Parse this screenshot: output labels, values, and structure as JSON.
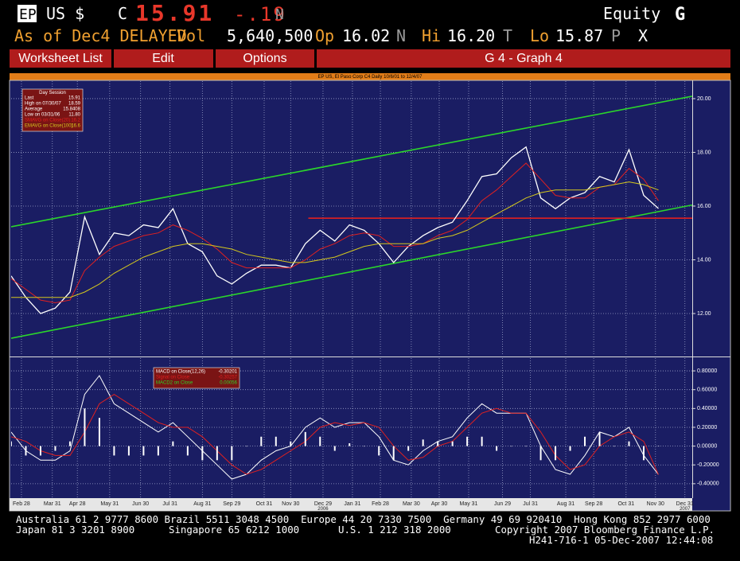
{
  "header": {
    "ticker": "EP",
    "market": "US $",
    "close_label": "C",
    "last": "15.91",
    "change": "-.19",
    "close_flag": "N",
    "sector": "Equity",
    "function": "G"
  },
  "quote_bar": {
    "as_of": "As of Dec4 DELAYED",
    "vol_label": "Vol",
    "volume": "5,640,500",
    "open_label": "Op",
    "open": "16.02",
    "open_flag": "N",
    "high_label": "Hi",
    "high": "16.20",
    "high_flag": "T",
    "low_label": "Lo",
    "low": "15.87",
    "low_flag": "P",
    "close_x": "X"
  },
  "menu": {
    "items": [
      "Worksheet List",
      "Edit",
      "Options"
    ],
    "title": "G 4 - Graph 4"
  },
  "chart_data": [
    {
      "type": "line",
      "title": "EP US, El Paso Corp C4 Daily 10/6/01 to 12/4/07",
      "xlim": [
        0,
        46.3
      ],
      "ylim": [
        10.43,
        20.65
      ],
      "yticks": [
        {
          "value": 12,
          "label": "12.00"
        },
        {
          "value": 14,
          "label": "14.00"
        },
        {
          "value": 16,
          "label": "16.00"
        },
        {
          "value": 18,
          "label": "18.00"
        },
        {
          "value": 20,
          "label": "20.00"
        }
      ],
      "grid": true,
      "info_box": {
        "title": "Day Session",
        "rows": [
          [
            "Last",
            "15.91"
          ],
          [
            "High on 07/30/07",
            "18.59"
          ],
          [
            "Average",
            "15.8408"
          ],
          [
            "Low on 03/31/06",
            "11.80"
          ]
        ]
      },
      "series": [
        {
          "color": "#ffffff",
          "values": [
            13.4,
            12.6,
            12.0,
            12.2,
            12.8,
            15.6,
            14.2,
            15.0,
            14.9,
            15.3,
            15.2,
            15.9,
            14.6,
            14.3,
            13.4,
            13.1,
            13.5,
            13.8,
            13.8,
            13.7,
            14.6,
            15.1,
            14.7,
            15.3,
            15.1,
            14.6,
            13.9,
            14.5,
            14.9,
            15.2,
            15.4,
            16.2,
            17.1,
            17.2,
            17.8,
            18.2,
            16.3,
            15.9,
            16.3,
            16.5,
            17.1,
            16.9,
            18.1,
            16.4,
            15.91
          ]
        },
        {
          "name": "SMAVG on Close(20)",
          "color": "#e02020",
          "last_label": "16.2",
          "values": [
            13.3,
            12.9,
            12.5,
            12.4,
            12.5,
            13.6,
            14.1,
            14.5,
            14.7,
            14.9,
            15.0,
            15.3,
            15.1,
            14.8,
            14.4,
            13.9,
            13.7,
            13.7,
            13.7,
            13.7,
            14.0,
            14.4,
            14.6,
            14.9,
            15.0,
            14.9,
            14.5,
            14.5,
            14.6,
            14.9,
            15.1,
            15.5,
            16.2,
            16.6,
            17.1,
            17.6,
            17.0,
            16.4,
            16.3,
            16.3,
            16.7,
            16.8,
            17.4,
            17.0,
            16.2
          ]
        },
        {
          "name": "EMAVG on Close(100)",
          "color": "#d4c81e",
          "last_label": "16.6",
          "values": [
            12.6,
            12.6,
            12.6,
            12.6,
            12.6,
            12.8,
            13.1,
            13.5,
            13.8,
            14.1,
            14.3,
            14.5,
            14.6,
            14.6,
            14.5,
            14.4,
            14.2,
            14.1,
            14.0,
            13.9,
            13.9,
            14.0,
            14.1,
            14.3,
            14.5,
            14.6,
            14.6,
            14.6,
            14.6,
            14.8,
            14.9,
            15.1,
            15.4,
            15.7,
            16.0,
            16.3,
            16.5,
            16.6,
            16.6,
            16.6,
            16.7,
            16.8,
            16.9,
            16.8,
            16.6
          ]
        }
      ],
      "trend_lines": [
        {
          "color": "#2bd62b",
          "x": [
            0,
            46.3
          ],
          "values": [
            15.23,
            20.09
          ]
        },
        {
          "color": "#2bd62b",
          "x": [
            0,
            46.3
          ],
          "values": [
            11.08,
            16.04
          ]
        },
        {
          "color": "#e02020",
          "x": [
            20.2,
            46.3
          ],
          "values": [
            15.55,
            15.55
          ]
        }
      ]
    },
    {
      "type": "line",
      "xlim": [
        0,
        46.3
      ],
      "ylim": [
        -0.545,
        0.936
      ],
      "yticks": [
        {
          "value": 0.8,
          "label": "0.80000"
        },
        {
          "value": 0.6,
          "label": "0.60000"
        },
        {
          "value": 0.4,
          "label": "0.40000"
        },
        {
          "value": 0.2,
          "label": "0.20000"
        },
        {
          "value": 0,
          "label": "0.00000"
        },
        {
          "value": -0.2,
          "label": "-0.20000"
        },
        {
          "value": -0.4,
          "label": "-0.40000"
        }
      ],
      "grid": true,
      "xticks": [
        {
          "value": 0.7,
          "label": "Feb 28"
        },
        {
          "value": 2.8,
          "label": "Mar 31"
        },
        {
          "value": 4.5,
          "label": "Apr 28"
        },
        {
          "value": 6.7,
          "label": "May 31"
        },
        {
          "value": 8.8,
          "label": "Jun 30"
        },
        {
          "value": 10.8,
          "label": "Jul 31"
        },
        {
          "value": 13.0,
          "label": "Aug 31"
        },
        {
          "value": 15.0,
          "label": "Sep 29"
        },
        {
          "value": 17.2,
          "label": "Oct 31"
        },
        {
          "value": 19.0,
          "label": "Nov 30"
        },
        {
          "value": 21.2,
          "label": "Dec 29"
        },
        {
          "value": 23.2,
          "label": "Jan 31"
        },
        {
          "value": 25.1,
          "label": "Feb 28"
        },
        {
          "value": 27.2,
          "label": "Mar 30"
        },
        {
          "value": 29.1,
          "label": "Apr 30"
        },
        {
          "value": 31.1,
          "label": "May 31"
        },
        {
          "value": 33.4,
          "label": "Jun 29"
        },
        {
          "value": 35.3,
          "label": "Jul 31"
        },
        {
          "value": 37.7,
          "label": "Aug 31"
        },
        {
          "value": 39.6,
          "label": "Sep 28"
        },
        {
          "value": 41.8,
          "label": "Oct 31"
        },
        {
          "value": 43.8,
          "label": "Nov 30"
        },
        {
          "value": 45.8,
          "label": "Dec 31"
        }
      ],
      "year_labels": [
        {
          "value": 21.2,
          "label": "2006"
        },
        {
          "value": 45.8,
          "label": "2007"
        }
      ],
      "series": [
        {
          "name": "MACD on Close(12,26)",
          "type": "line",
          "color": "#ffffff",
          "last_label": "-0.30201",
          "values": [
            0.15,
            -0.05,
            -0.15,
            -0.15,
            -0.05,
            0.55,
            0.75,
            0.45,
            0.35,
            0.25,
            0.15,
            0.25,
            0.1,
            -0.05,
            -0.2,
            -0.35,
            -0.3,
            -0.15,
            -0.05,
            0.0,
            0.2,
            0.3,
            0.2,
            0.25,
            0.25,
            0.1,
            -0.15,
            -0.2,
            -0.05,
            0.05,
            0.1,
            0.3,
            0.45,
            0.35,
            0.35,
            0.35,
            0.0,
            -0.25,
            -0.3,
            -0.1,
            0.15,
            0.1,
            0.2,
            -0.1,
            -0.30201
          ]
        },
        {
          "name": "Signal on Close",
          "type": "line",
          "color": "#e02020",
          "last_label": "-0.30257",
          "values": [
            0.1,
            0.05,
            -0.05,
            -0.1,
            -0.1,
            0.15,
            0.45,
            0.55,
            0.45,
            0.35,
            0.25,
            0.2,
            0.2,
            0.1,
            -0.05,
            -0.2,
            -0.3,
            -0.25,
            -0.15,
            -0.05,
            0.05,
            0.2,
            0.25,
            0.22,
            0.25,
            0.2,
            0.0,
            -0.15,
            -0.12,
            0.0,
            0.05,
            0.2,
            0.35,
            0.4,
            0.35,
            0.35,
            0.15,
            -0.1,
            -0.25,
            -0.2,
            0.0,
            0.1,
            0.15,
            0.05,
            -0.30257
          ]
        },
        {
          "name": "MACD2 on Close",
          "type": "bar",
          "color": "#ffffff",
          "legend_color": "#2bd62b",
          "last_label": "0.00056",
          "values": [
            0.05,
            -0.1,
            -0.1,
            -0.05,
            0.05,
            0.4,
            0.3,
            -0.1,
            -0.1,
            -0.1,
            -0.1,
            0.05,
            -0.1,
            -0.15,
            -0.15,
            -0.15,
            0.0,
            0.1,
            0.1,
            0.05,
            0.15,
            0.1,
            -0.05,
            0.03,
            0.0,
            -0.1,
            -0.15,
            -0.05,
            0.07,
            0.05,
            0.05,
            0.1,
            0.1,
            -0.05,
            0.0,
            0.0,
            -0.15,
            -0.15,
            -0.05,
            0.1,
            0.15,
            0.0,
            0.05,
            -0.15,
            0.00056
          ]
        }
      ]
    }
  ],
  "footer": {
    "rows": [
      [
        "Australia 61 2 9777 8600 Brazil 5511 3048 4500  Europe 44 20 7330 7500  Germany 49 69 920410  Hong Kong 852 2977 6000"
      ],
      [
        "Japan 81 3 3201 8900",
        "Singapore 65 6212 1000",
        "U.S. 1 212 318 2000",
        "Copyright 2007 Bloomberg Finance L.P."
      ],
      [
        "H241-716-1 05-Dec-2007 12:44:08"
      ]
    ]
  }
}
